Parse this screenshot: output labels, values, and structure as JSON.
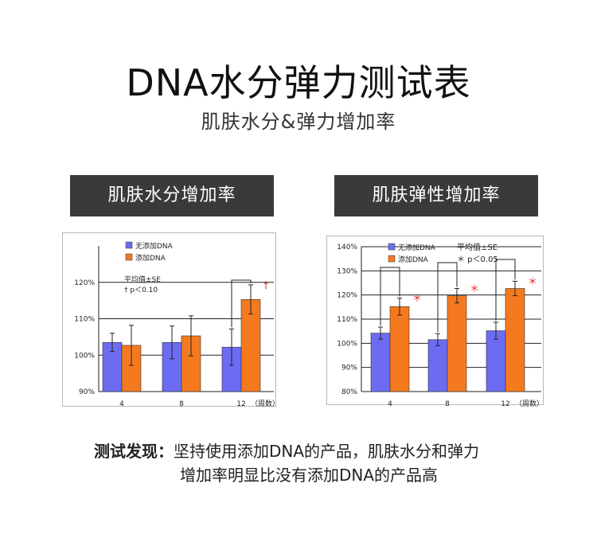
{
  "header": {
    "title": "DNA水分弹力测试表",
    "subtitle": "肌肤水分&弹力增加率"
  },
  "panels": {
    "left_title": "肌肤水分增加率",
    "right_title": "肌肤弹性增加率"
  },
  "colors": {
    "without": "#6c6cf2",
    "with": "#f5791f",
    "header_bg": "#3a3a3a",
    "significance": "#e02020"
  },
  "chart_data": [
    {
      "type": "bar",
      "categories": [
        "4",
        "8",
        "12"
      ],
      "x_unit": "（周数）",
      "yticks": [
        "90%",
        "100%",
        "110%",
        "120%"
      ],
      "ylim": [
        90,
        130
      ],
      "grid": true,
      "legend_position": "top-left",
      "series": [
        {
          "name": "无添加DNA",
          "values": [
            103.5,
            103.5,
            102.2
          ],
          "errors": [
            2.5,
            4.5,
            5.0
          ]
        },
        {
          "name": "添加DNA",
          "values": [
            102.7,
            105.3,
            115.3
          ],
          "errors": [
            5.5,
            5.5,
            4.0
          ]
        }
      ],
      "annotations": {
        "stat_note": "平均值±SE",
        "sig_note": "† p＜0.10",
        "markers": [
          {
            "category": "12",
            "symbol": "†"
          }
        ]
      }
    },
    {
      "type": "bar",
      "categories": [
        "4",
        "8",
        "12"
      ],
      "x_unit": "（周数）",
      "yticks": [
        "80%",
        "90%",
        "100%",
        "110%",
        "120%",
        "130%",
        "140%"
      ],
      "ylim": [
        80,
        140
      ],
      "grid": true,
      "legend_position": "top-left",
      "series": [
        {
          "name": "无添加DNA",
          "values": [
            104.2,
            101.5,
            105.2
          ],
          "errors": [
            2.5,
            2.5,
            3.5
          ]
        },
        {
          "name": "添加DNA",
          "values": [
            115.2,
            119.7,
            122.7
          ],
          "errors": [
            3.5,
            3.0,
            3.0
          ]
        }
      ],
      "annotations": {
        "stat_note": "平均值±SE",
        "sig_note": "＊ p＜0.05",
        "markers": [
          {
            "category": "4",
            "symbol": "＊"
          },
          {
            "category": "8",
            "symbol": "＊"
          },
          {
            "category": "12",
            "symbol": "＊"
          }
        ]
      }
    }
  ],
  "findings": {
    "label": "测试发现：",
    "line1": "坚持使用添加DNA的产品，肌肤水分和弹力",
    "line2": "增加率明显比没有添加DNA的产品高"
  }
}
